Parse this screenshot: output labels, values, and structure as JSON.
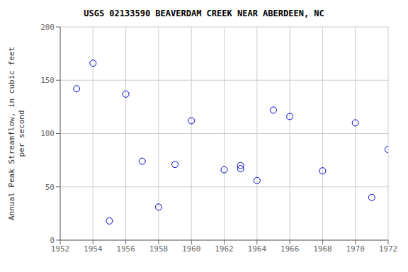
{
  "chart_data": {
    "type": "scatter",
    "title": "USGS 02133590 BEAVERDAM CREEK NEAR ABERDEEN, NC",
    "y_label": "Annual Peak Streamflow, in cubic feet\nper second",
    "x": [
      1953,
      1954,
      1955,
      1956,
      1957,
      1958,
      1959,
      1960,
      1962,
      1963,
      1963,
      1964,
      1965,
      1966,
      1968,
      1970,
      1971,
      1972
    ],
    "values": [
      142,
      166,
      18,
      137,
      74,
      31,
      71,
      112,
      66,
      67,
      70,
      56,
      122,
      116,
      65,
      110,
      40,
      85
    ],
    "color": "#0000cc",
    "marker": "open_circle",
    "xlim": [
      1952,
      1972
    ],
    "ylim": [
      0,
      200
    ],
    "xticks": [
      1952,
      1954,
      1956,
      1958,
      1960,
      1962,
      1964,
      1966,
      1968,
      1970,
      1972
    ],
    "yticks": [
      0,
      50,
      100,
      150,
      200
    ],
    "grid": true
  }
}
